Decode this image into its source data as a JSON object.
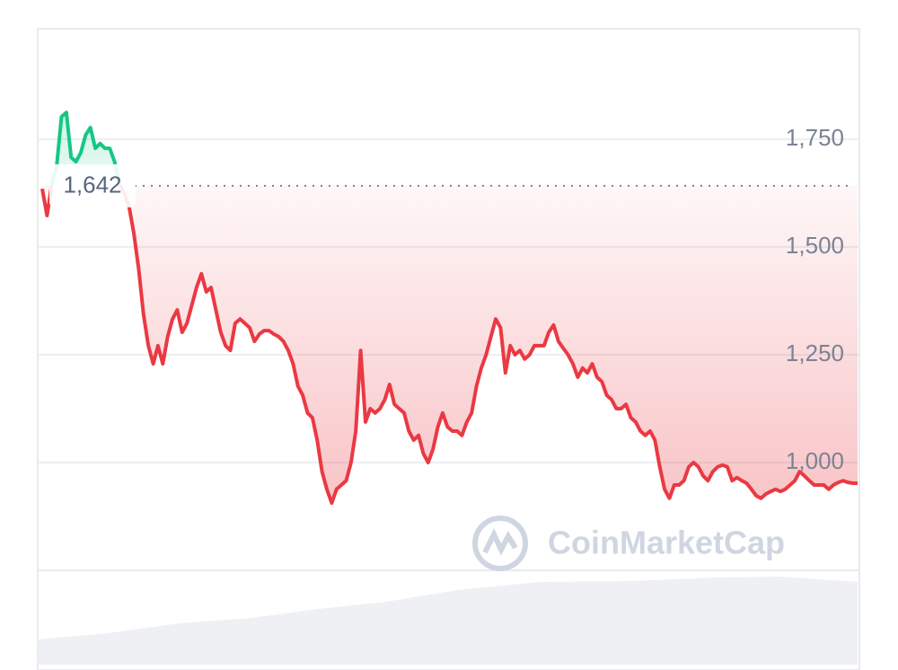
{
  "chart_data": {
    "type": "line",
    "watermark": "CoinMarketCap",
    "reference": {
      "value": 1642,
      "label": "1,642"
    },
    "ylim": [
      750,
      2000
    ],
    "yticks": [
      {
        "value": 1000,
        "label": "1,000"
      },
      {
        "value": 1250,
        "label": "1,250"
      },
      {
        "value": 1500,
        "label": "1,500"
      },
      {
        "value": 1750,
        "label": "1,750"
      }
    ],
    "grid": true,
    "up_color": "#16c784",
    "down_color": "#ea3943",
    "values": [
      1635,
      1573,
      1646,
      1688,
      1802,
      1812,
      1708,
      1698,
      1719,
      1760,
      1777,
      1729,
      1740,
      1729,
      1729,
      1698,
      1646,
      1625,
      1594,
      1531,
      1448,
      1344,
      1271,
      1229,
      1271,
      1229,
      1292,
      1333,
      1354,
      1302,
      1323,
      1365,
      1406,
      1438,
      1396,
      1406,
      1354,
      1302,
      1271,
      1260,
      1323,
      1333,
      1323,
      1313,
      1281,
      1298,
      1306,
      1306,
      1298,
      1292,
      1281,
      1260,
      1229,
      1177,
      1156,
      1115,
      1104,
      1052,
      979,
      938,
      906,
      938,
      948,
      958,
      1000,
      1073,
      1260,
      1094,
      1125,
      1115,
      1125,
      1146,
      1181,
      1135,
      1125,
      1115,
      1073,
      1052,
      1063,
      1021,
      1000,
      1031,
      1083,
      1115,
      1083,
      1073,
      1073,
      1063,
      1094,
      1115,
      1177,
      1219,
      1250,
      1292,
      1333,
      1313,
      1208,
      1271,
      1250,
      1260,
      1240,
      1250,
      1271,
      1271,
      1271,
      1302,
      1319,
      1281,
      1265,
      1250,
      1229,
      1198,
      1219,
      1208,
      1229,
      1198,
      1188,
      1156,
      1146,
      1125,
      1125,
      1135,
      1104,
      1094,
      1073,
      1063,
      1073,
      1052,
      990,
      938,
      917,
      948,
      948,
      958,
      990,
      1000,
      990,
      969,
      958,
      979,
      990,
      994,
      990,
      958,
      965,
      958,
      952,
      938,
      923,
      917,
      927,
      933,
      938,
      933,
      938,
      948,
      958,
      979,
      969,
      958,
      948,
      948,
      948,
      938,
      948,
      954,
      958,
      954,
      952,
      952
    ]
  }
}
